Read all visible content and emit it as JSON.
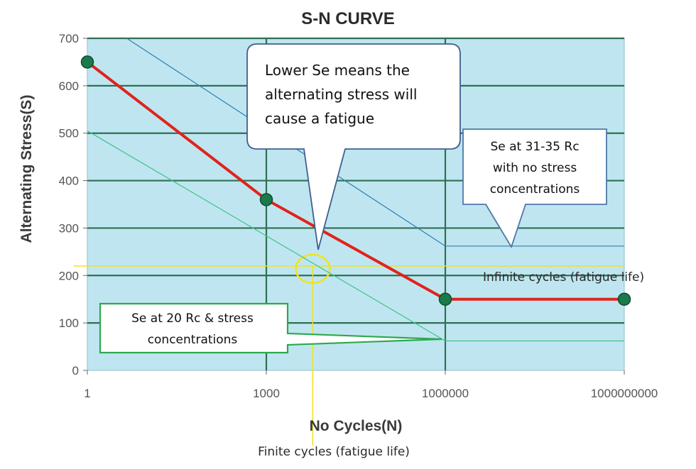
{
  "chart_data": {
    "type": "line",
    "title": "S-N CURVE",
    "xlabel": "No Cycles(N)",
    "ylabel": "Alternating Stress(S)",
    "x_scale": "log",
    "x_ticks": [
      "1",
      "1000",
      "1000000",
      "1000000000"
    ],
    "y_ticks": [
      "0",
      "100",
      "200",
      "300",
      "400",
      "500",
      "600",
      "700"
    ],
    "ylim": [
      0,
      700
    ],
    "xlim": [
      1,
      1000000000
    ],
    "grid": true,
    "series": [
      {
        "color": "#e0231c",
        "points": [
          [
            1,
            650
          ],
          [
            1000,
            360
          ],
          [
            1000000,
            150
          ],
          [
            1000000000,
            150
          ]
        ]
      },
      {
        "color": "#2f7fb8",
        "points": [
          [
            3,
            715
          ],
          [
            1000000,
            262
          ],
          [
            1000000000,
            262
          ]
        ]
      },
      {
        "color": "#3fc28a",
        "points": [
          [
            1,
            505
          ],
          [
            1000000,
            62
          ],
          [
            1000000000,
            62
          ]
        ]
      }
    ],
    "reference_lines": {
      "x": 6000,
      "y": 220,
      "color": "#f2e21b"
    },
    "annotations": {
      "top_callout": [
        "Lower Se means the",
        "alternating stress will",
        "cause a fatigue"
      ],
      "right_callout": [
        "Se at 31-35 Rc",
        "with no stress",
        "concentrations"
      ],
      "left_callout": [
        "Se at 20 Rc & stress",
        "concentrations"
      ],
      "infinite_label": "Infinite cycles (fatigue life)",
      "finite_label": "Finite cycles (fatigue life)"
    },
    "colors": {
      "plot_background": "#bfe6f0",
      "grid": "#2f6f55",
      "marker": "#1a7a4a",
      "left_callout_border": "#2ea84f",
      "right_callout_border": "#4e78a8",
      "top_callout_border": "#3f5f8f"
    }
  }
}
